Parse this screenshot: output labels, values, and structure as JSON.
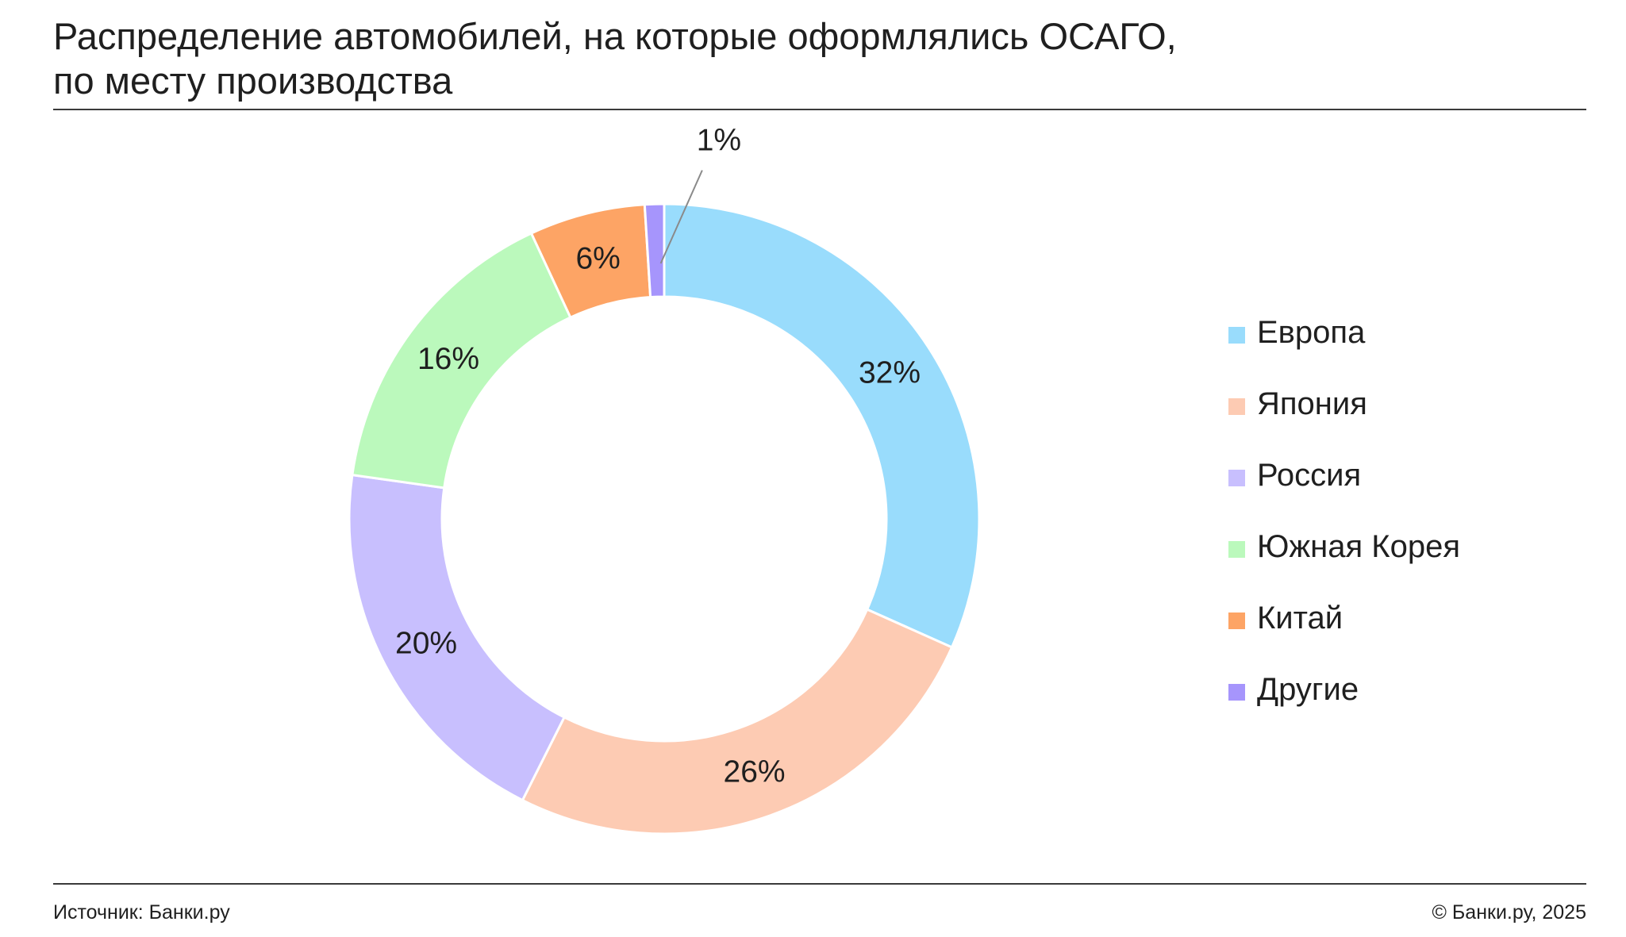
{
  "title": {
    "line1": "Распределение автомобилей, на которые оформлялись ОСАГО,",
    "line2": "по месту производства"
  },
  "chart_data": {
    "type": "pie",
    "donut": true,
    "legend_position": "right",
    "categories": [
      "Европа",
      "Япония",
      "Россия",
      "Южная Корея",
      "Китай",
      "Другие"
    ],
    "values": [
      32,
      26,
      20,
      16,
      6,
      1
    ],
    "value_labels": [
      "32%",
      "26%",
      "20%",
      "16%",
      "6%",
      "1%"
    ],
    "unit": "%",
    "colors": [
      "#99DCFC",
      "#FDCBB3",
      "#C8BFFE",
      "#BBF9BC",
      "#FDA465",
      "#A695FC"
    ]
  },
  "footer": {
    "source": "Источник: Банки.ру",
    "copyright": "© Банки.ру, 2025"
  }
}
